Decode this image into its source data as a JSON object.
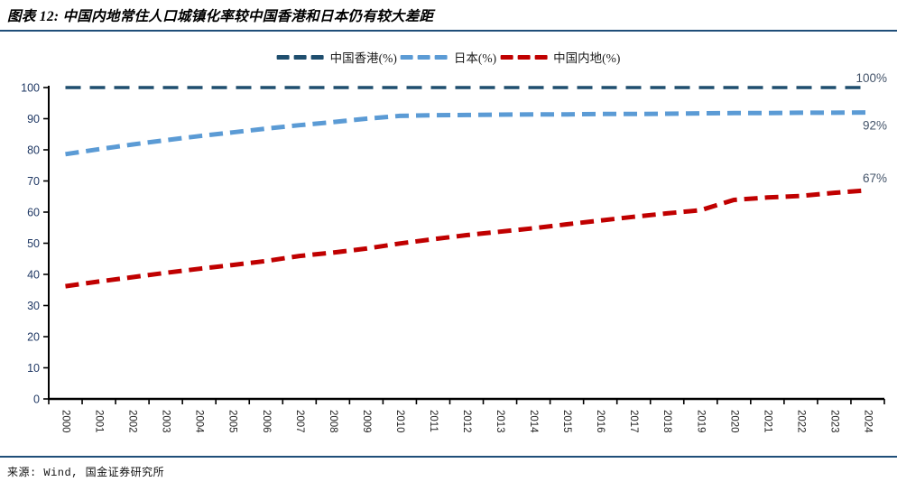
{
  "header": {
    "title": "图表 12: 中国内地常住人口城镇化率较中国香港和日本仍有较大差距",
    "rule_color": "#1F4E79"
  },
  "footer": {
    "source": "来源: Wind, 国金证券研究所"
  },
  "chart_data": {
    "type": "line",
    "title": "中国内地常住人口城镇化率较中国香港和日本仍有较大差距",
    "xlabel": "",
    "ylabel": "",
    "ylim": [
      0,
      100
    ],
    "ytick_step": 10,
    "grid": false,
    "legend_position": "top",
    "axis_color": "#000000",
    "axis_label_color": "#1F3864",
    "xtick_label_color": "#262626",
    "data_label_color": "#44546A",
    "categories": [
      "2000",
      "2001",
      "2002",
      "2003",
      "2004",
      "2005",
      "2006",
      "2007",
      "2008",
      "2009",
      "2010",
      "2011",
      "2012",
      "2013",
      "2014",
      "2015",
      "2016",
      "2017",
      "2018",
      "2019",
      "2020",
      "2021",
      "2022",
      "2023",
      "2024"
    ],
    "series": [
      {
        "name": "中国香港(%)",
        "color": "#1F4E6E",
        "end_label": "100%",
        "values": [
          100,
          100,
          100,
          100,
          100,
          100,
          100,
          100,
          100,
          100,
          100,
          100,
          100,
          100,
          100,
          100,
          100,
          100,
          100,
          100,
          100,
          100,
          100,
          100,
          100
        ]
      },
      {
        "name": "日本(%)",
        "color": "#5B9BD5",
        "end_label": "92%",
        "values": [
          78.6,
          80.2,
          81.7,
          83.1,
          84.4,
          85.6,
          86.8,
          87.9,
          88.9,
          90.0,
          90.9,
          91.1,
          91.2,
          91.3,
          91.4,
          91.4,
          91.5,
          91.5,
          91.6,
          91.7,
          91.8,
          91.8,
          91.9,
          91.9,
          92.0
        ]
      },
      {
        "name": "中国内地(%)",
        "color": "#C00000",
        "end_label": "67%",
        "values": [
          36.2,
          37.7,
          39.1,
          40.5,
          41.8,
          43.0,
          44.3,
          45.9,
          47.0,
          48.3,
          49.9,
          51.3,
          52.6,
          53.7,
          54.8,
          56.1,
          57.3,
          58.5,
          59.6,
          60.6,
          63.9,
          64.7,
          65.2,
          66.2,
          67.0
        ]
      }
    ]
  }
}
